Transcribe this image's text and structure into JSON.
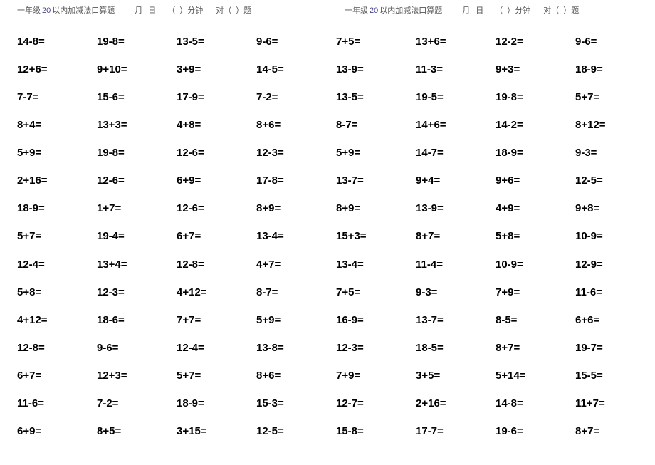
{
  "header": {
    "grade": "一年级",
    "limit_num": "20",
    "title_suffix": "以内加减法口算题",
    "month": "月",
    "day": "日",
    "paren_open": "（",
    "paren_close": "）",
    "minutes": "分钟",
    "correct": "对（",
    "questions": "）题"
  },
  "worksheet": {
    "background_color": "#ffffff",
    "header_border_color": "#000000",
    "text_color": "#000000",
    "header_text_color": "#555555",
    "accent_color": "#4a4a8a",
    "font_size_cell": 15,
    "font_size_header": 11,
    "columns": 8,
    "rows": 15,
    "cells": [
      [
        "14-8=",
        "19-8=",
        "13-5=",
        "9-6=",
        "7+5=",
        "13+6=",
        "12-2=",
        "9-6="
      ],
      [
        "12+6=",
        "9+10=",
        "3+9=",
        "14-5=",
        "13-9=",
        "11-3=",
        "9+3=",
        "18-9="
      ],
      [
        "7-7=",
        "15-6=",
        "17-9=",
        "7-2=",
        "13-5=",
        "19-5=",
        "19-8=",
        "5+7="
      ],
      [
        "8+4=",
        "13+3=",
        "4+8=",
        "8+6=",
        "8-7=",
        "14+6=",
        "14-2=",
        "8+12="
      ],
      [
        "5+9=",
        "19-8=",
        "12-6=",
        "12-3=",
        "5+9=",
        "14-7=",
        "18-9=",
        "9-3="
      ],
      [
        "2+16=",
        "12-6=",
        "6+9=",
        "17-8=",
        "13-7=",
        "9+4=",
        "9+6=",
        "12-5="
      ],
      [
        "18-9=",
        "1+7=",
        "12-6=",
        "8+9=",
        "8+9=",
        "13-9=",
        "4+9=",
        "9+8="
      ],
      [
        "5+7=",
        "19-4=",
        "6+7=",
        "13-4=",
        "15+3=",
        "8+7=",
        "5+8=",
        "10-9="
      ],
      [
        "12-4=",
        "13+4=",
        "12-8=",
        "4+7=",
        "13-4=",
        "11-4=",
        "10-9=",
        "12-9="
      ],
      [
        "5+8=",
        "12-3=",
        "4+12=",
        "8-7=",
        "7+5=",
        "9-3=",
        "7+9=",
        "11-6="
      ],
      [
        "4+12=",
        "18-6=",
        "7+7=",
        "5+9=",
        "16-9=",
        "13-7=",
        "8-5=",
        "6+6="
      ],
      [
        "12-8=",
        "9-6=",
        "12-4=",
        "13-8=",
        "12-3=",
        "18-5=",
        "8+7=",
        "19-7="
      ],
      [
        "6+7=",
        "12+3=",
        "5+7=",
        "8+6=",
        "7+9=",
        "3+5=",
        "5+14=",
        "15-5="
      ],
      [
        "11-6=",
        "7-2=",
        "18-9=",
        "15-3=",
        "12-7=",
        "2+16=",
        "14-8=",
        "11+7="
      ],
      [
        "6+9=",
        "8+5=",
        "3+15=",
        "12-5=",
        "15-8=",
        "17-7=",
        "19-6=",
        "8+7="
      ]
    ]
  }
}
